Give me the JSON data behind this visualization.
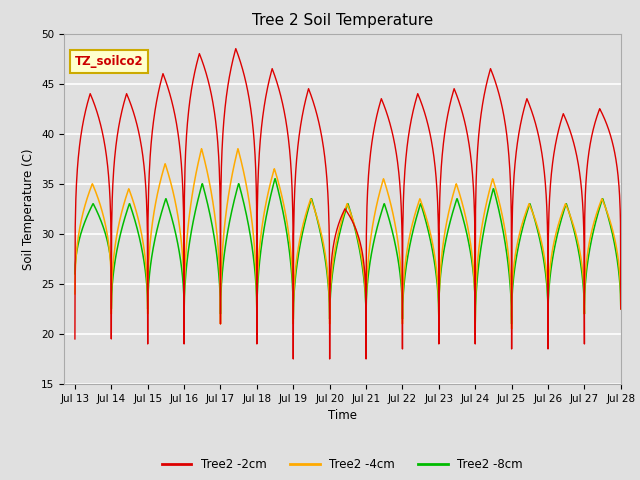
{
  "title": "Tree 2 Soil Temperature",
  "xlabel": "Time",
  "ylabel": "Soil Temperature (C)",
  "ylim": [
    15,
    50
  ],
  "background_color": "#e0e0e0",
  "plot_bg_color": "#e0e0e0",
  "grid_color": "white",
  "annotation_text": "TZ_soilco2",
  "annotation_bg": "#ffffcc",
  "annotation_border": "#ccaa00",
  "line_2cm_color": "#dd0000",
  "line_4cm_color": "#ffaa00",
  "line_8cm_color": "#00bb00",
  "legend_labels": [
    "Tree2 -2cm",
    "Tree2 -4cm",
    "Tree2 -8cm"
  ],
  "x_tick_labels": [
    "Jul 13",
    "Jul 14",
    "Jul 15",
    "Jul 16",
    "Jul 17",
    "Jul 18",
    "Jul 19",
    "Jul 20",
    "Jul 21",
    "Jul 22",
    "Jul 23",
    "Jul 24",
    "Jul 25",
    "Jul 26",
    "Jul 27",
    "Jul 28"
  ],
  "tick_font_size": 7.5,
  "title_font_size": 11,
  "label_font_size": 8.5,
  "cycles": [
    {
      "peak_t": 0.55,
      "min2": 19.5,
      "max2": 44.0,
      "min4": 24.0,
      "max4": 35.0,
      "min8": 26.0,
      "max8": 33.0
    },
    {
      "peak_t": 0.55,
      "min2": 19.5,
      "max2": 44.0,
      "min4": 22.0,
      "max4": 34.5,
      "min8": 22.5,
      "max8": 33.0
    },
    {
      "peak_t": 0.55,
      "min2": 19.0,
      "max2": 46.0,
      "min4": 22.5,
      "max4": 37.0,
      "min8": 22.5,
      "max8": 33.5
    },
    {
      "peak_t": 0.55,
      "min2": 21.5,
      "max2": 48.0,
      "min4": 21.0,
      "max4": 38.5,
      "min8": 22.0,
      "max8": 35.0
    },
    {
      "peak_t": 0.55,
      "min2": 21.0,
      "max2": 48.5,
      "min4": 21.0,
      "max4": 38.5,
      "min8": 22.0,
      "max8": 35.0
    },
    {
      "peak_t": 0.55,
      "min2": 19.0,
      "max2": 46.5,
      "min4": 21.5,
      "max4": 36.5,
      "min8": 22.0,
      "max8": 35.5
    },
    {
      "peak_t": 0.55,
      "min2": 17.5,
      "max2": 44.5,
      "min4": 21.0,
      "max4": 33.5,
      "min8": 21.5,
      "max8": 33.5
    },
    {
      "peak_t": 0.55,
      "min2": 17.5,
      "max2": 32.5,
      "min4": 21.0,
      "max4": 33.0,
      "min8": 21.5,
      "max8": 33.0
    },
    {
      "peak_t": 0.55,
      "min2": 18.5,
      "max2": 43.5,
      "min4": 21.0,
      "max4": 35.5,
      "min8": 22.0,
      "max8": 33.0
    },
    {
      "peak_t": 0.55,
      "min2": 19.0,
      "max2": 44.0,
      "min4": 21.0,
      "max4": 33.5,
      "min8": 21.5,
      "max8": 33.0
    },
    {
      "peak_t": 0.55,
      "min2": 19.0,
      "max2": 44.5,
      "min4": 21.0,
      "max4": 35.0,
      "min8": 22.5,
      "max8": 33.5
    },
    {
      "peak_t": 0.55,
      "min2": 20.5,
      "max2": 46.5,
      "min4": 20.5,
      "max4": 35.5,
      "min8": 21.0,
      "max8": 34.5
    },
    {
      "peak_t": 0.55,
      "min2": 18.5,
      "max2": 43.5,
      "min4": 22.0,
      "max4": 33.0,
      "min8": 22.0,
      "max8": 33.0
    },
    {
      "peak_t": 0.55,
      "min2": 19.0,
      "max2": 42.0,
      "min4": 22.0,
      "max4": 33.0,
      "min8": 22.0,
      "max8": 33.0
    },
    {
      "peak_t": 0.55,
      "min2": 22.5,
      "max2": 42.5,
      "min4": 22.5,
      "max4": 33.5,
      "min8": 22.5,
      "max8": 33.5
    }
  ]
}
